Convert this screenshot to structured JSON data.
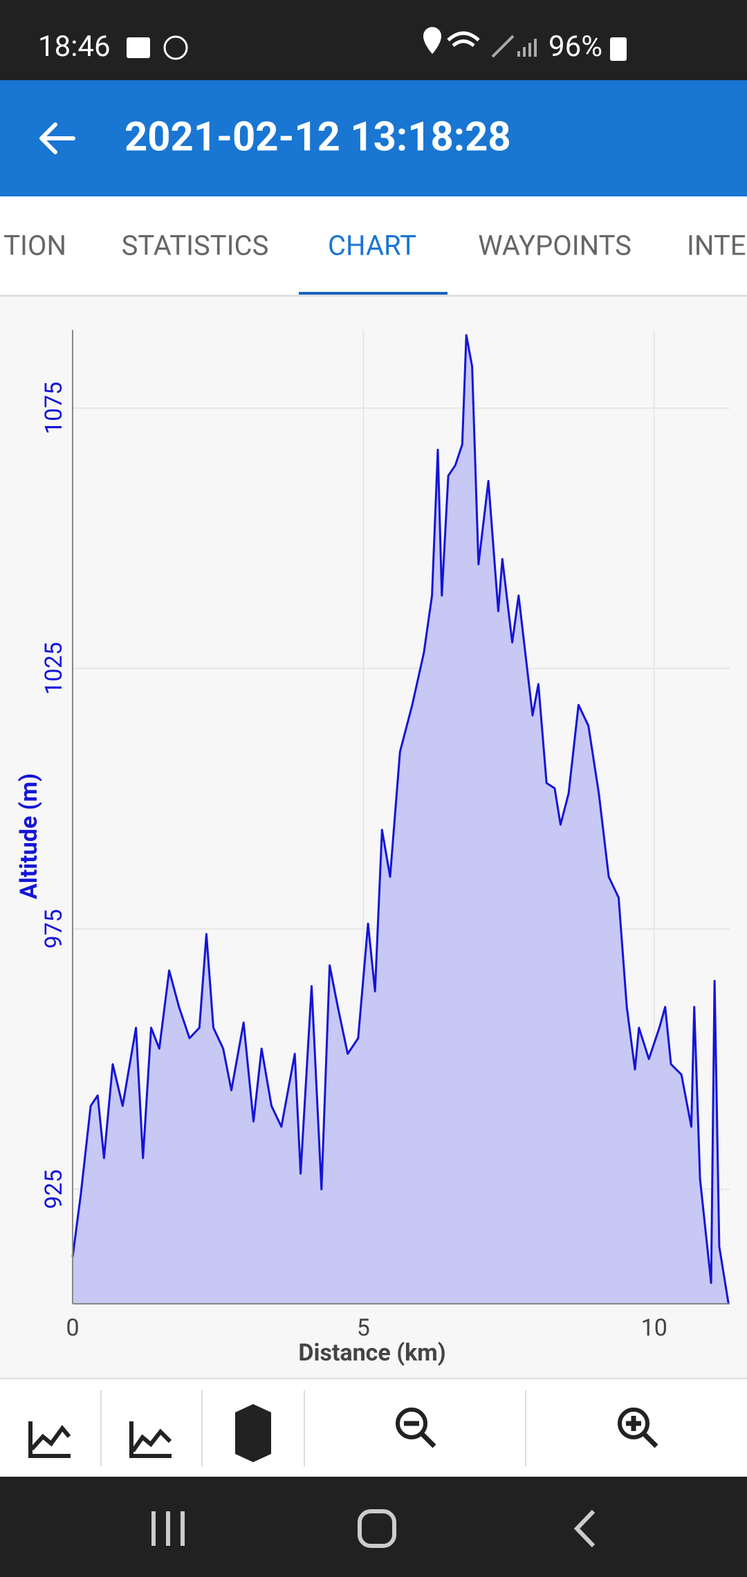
{
  "status_bar": {
    "time": "18:46",
    "battery": "96%"
  },
  "app_bar": {
    "title": "2021-02-12 13:18:28"
  },
  "tabs": [
    "TION",
    "STATISTICS",
    "CHART",
    "WAYPOINTS",
    "INTE"
  ],
  "chart_data": {
    "type": "area",
    "x_label": "Distance (km)",
    "y_label": "Altitude (m)",
    "xlim": [
      0,
      11.3
    ],
    "ylim": [
      903,
      1090
    ],
    "xticks": [
      0,
      5,
      10
    ],
    "yticks": [
      925,
      975,
      1025,
      1075
    ],
    "grid": true,
    "x": [
      0,
      0.14,
      0.31,
      0.43,
      0.54,
      0.69,
      0.86,
      1.09,
      1.21,
      1.35,
      1.49,
      1.66,
      1.83,
      2.01,
      2.18,
      2.3,
      2.42,
      2.59,
      2.73,
      2.94,
      3.11,
      3.25,
      3.42,
      3.59,
      3.82,
      3.92,
      4.11,
      4.28,
      4.42,
      4.56,
      4.73,
      4.91,
      5.08,
      5.2,
      5.32,
      5.46,
      5.63,
      5.84,
      6.04,
      6.18,
      6.28,
      6.35,
      6.46,
      6.58,
      6.7,
      6.77,
      6.87,
      6.98,
      7.15,
      7.32,
      7.39,
      7.56,
      7.67,
      7.91,
      8.01,
      8.15,
      8.29,
      8.39,
      8.53,
      8.7,
      8.87,
      9.05,
      9.22,
      9.39,
      9.53,
      9.67,
      9.74,
      9.91,
      10.09,
      10.19,
      10.29,
      10.47,
      10.64,
      10.69,
      10.79,
      10.98,
      11.04,
      11.12,
      11.28
    ],
    "series": [
      {
        "name": "Altitude (m)",
        "color": "#1414d8",
        "fill": "#c8c8f5",
        "values": [
          912,
          924,
          941,
          943,
          931,
          949,
          941,
          956,
          931,
          956,
          952,
          967,
          960,
          954,
          956,
          974,
          956,
          952,
          944,
          957,
          938,
          952,
          941,
          937,
          951,
          928,
          964,
          925,
          968,
          960,
          951,
          954,
          976,
          963,
          994,
          985,
          1009,
          1018,
          1028,
          1039,
          1067,
          1039,
          1062,
          1064,
          1068,
          1089,
          1083,
          1045,
          1061,
          1036,
          1046,
          1030,
          1039,
          1016,
          1022,
          1003,
          1002,
          995,
          1001,
          1018,
          1014,
          1001,
          985,
          981,
          960,
          948,
          956,
          950,
          956,
          960,
          949,
          947,
          937,
          960,
          927,
          907,
          965,
          914,
          903
        ]
      }
    ]
  }
}
